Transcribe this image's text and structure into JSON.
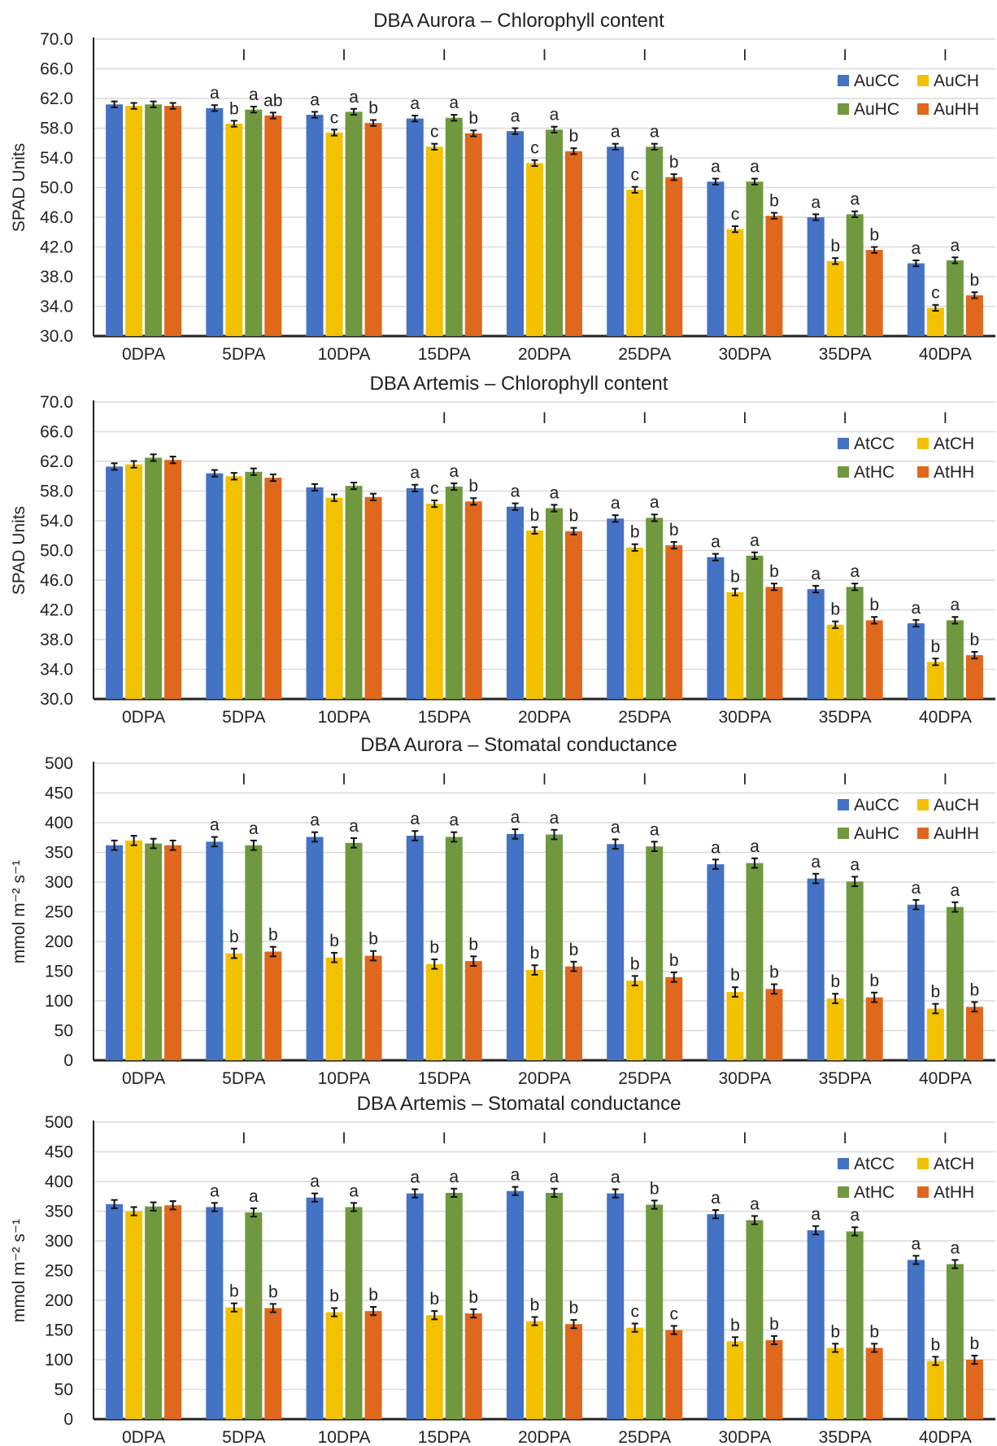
{
  "chart_data": [
    {
      "type": "bar",
      "title": "DBA Aurora – Chlorophyll content",
      "ylabel": "SPAD Units",
      "xlabel": "",
      "ylim": [
        30,
        70
      ],
      "yticks": [
        "30.0",
        "34.0",
        "38.0",
        "42.0",
        "46.0",
        "50.0",
        "54.0",
        "58.0",
        "62.0",
        "66.0",
        "70.0"
      ],
      "grid": true,
      "legend_position": "top-right",
      "categories": [
        "0DPA",
        "5DPA",
        "10DPA",
        "15DPA",
        "20DPA",
        "25DPA",
        "30DPA",
        "35DPA",
        "40DPA"
      ],
      "lsd_marker": "I",
      "lsd_shown": [
        false,
        true,
        true,
        true,
        true,
        true,
        true,
        true,
        true
      ],
      "error": 0.4,
      "series": [
        {
          "name": "AuCC",
          "color": "#4472C4",
          "values": [
            61.2,
            60.7,
            59.8,
            59.3,
            57.6,
            55.5,
            50.8,
            46.0,
            39.8
          ],
          "letters": [
            "",
            "a",
            "a",
            "a",
            "a",
            "a",
            "a",
            "a",
            "a"
          ]
        },
        {
          "name": "AuCH",
          "color": "#F2C100",
          "values": [
            61.0,
            58.6,
            57.4,
            55.5,
            53.3,
            49.7,
            44.4,
            40.1,
            33.8
          ],
          "letters": [
            "",
            "b",
            "c",
            "c",
            "c",
            "c",
            "c",
            "b",
            "c"
          ]
        },
        {
          "name": "AuHC",
          "color": "#70993F",
          "values": [
            61.2,
            60.5,
            60.2,
            59.4,
            57.8,
            55.5,
            50.8,
            46.4,
            40.2
          ],
          "letters": [
            "",
            "a",
            "a",
            "a",
            "a",
            "a",
            "a",
            "a",
            "a"
          ]
        },
        {
          "name": "AuHH",
          "color": "#E0681C",
          "values": [
            61.0,
            59.7,
            58.7,
            57.3,
            54.9,
            51.4,
            46.2,
            41.6,
            35.5
          ],
          "letters": [
            "",
            "ab",
            "b",
            "b",
            "b",
            "b",
            "b",
            "b",
            "b"
          ]
        }
      ]
    },
    {
      "type": "bar",
      "title": "DBA Artemis – Chlorophyll content",
      "ylabel": "SPAD Units",
      "xlabel": "",
      "ylim": [
        30,
        70
      ],
      "yticks": [
        "30.0",
        "34.0",
        "38.0",
        "42.0",
        "46.0",
        "50.0",
        "54.0",
        "58.0",
        "62.0",
        "66.0",
        "70.0"
      ],
      "grid": true,
      "legend_position": "top-right",
      "categories": [
        "0DPA",
        "5DPA",
        "10DPA",
        "15DPA",
        "20DPA",
        "25DPA",
        "30DPA",
        "35DPA",
        "40DPA"
      ],
      "lsd_marker": "I",
      "lsd_shown": [
        false,
        false,
        false,
        true,
        true,
        true,
        true,
        true,
        true
      ],
      "error": 0.45,
      "series": [
        {
          "name": "AtCC",
          "color": "#4472C4",
          "values": [
            61.3,
            60.4,
            58.5,
            58.4,
            55.9,
            54.3,
            49.1,
            44.8,
            40.2
          ],
          "letters": [
            "",
            "",
            "",
            "a",
            "a",
            "a",
            "a",
            "a",
            "a"
          ]
        },
        {
          "name": "AtCH",
          "color": "#F2C100",
          "values": [
            61.6,
            60.0,
            57.1,
            56.3,
            52.7,
            50.4,
            44.4,
            40.0,
            35.0
          ],
          "letters": [
            "",
            "",
            "",
            "c",
            "b",
            "b",
            "b",
            "b",
            "b"
          ]
        },
        {
          "name": "AtHC",
          "color": "#70993F",
          "values": [
            62.5,
            60.6,
            58.7,
            58.6,
            55.7,
            54.4,
            49.3,
            45.1,
            40.6
          ],
          "letters": [
            "",
            "",
            "",
            "a",
            "a",
            "a",
            "a",
            "a",
            "a"
          ]
        },
        {
          "name": "AtHH",
          "color": "#E0681C",
          "values": [
            62.2,
            59.8,
            57.2,
            56.6,
            52.6,
            50.7,
            45.1,
            40.6,
            35.9
          ],
          "letters": [
            "",
            "",
            "",
            "b",
            "b",
            "b",
            "b",
            "b",
            "b"
          ]
        }
      ]
    },
    {
      "type": "bar",
      "title": "DBA Aurora – Stomatal conductance",
      "ylabel": "mmol m⁻² s⁻¹",
      "xlabel": "",
      "ylim": [
        0,
        500
      ],
      "yticks": [
        "0",
        "50",
        "100",
        "150",
        "200",
        "250",
        "300",
        "350",
        "400",
        "450",
        "500"
      ],
      "grid": true,
      "legend_position": "top-right",
      "categories": [
        "0DPA",
        "5DPA",
        "10DPA",
        "15DPA",
        "20DPA",
        "25DPA",
        "30DPA",
        "35DPA",
        "40DPA"
      ],
      "lsd_marker": "I",
      "lsd_shown": [
        false,
        true,
        true,
        true,
        true,
        true,
        true,
        true,
        true
      ],
      "error": 8,
      "series": [
        {
          "name": "AuCC",
          "color": "#4472C4",
          "values": [
            362,
            368,
            376,
            378,
            381,
            364,
            330,
            306,
            262
          ],
          "letters": [
            "",
            "a",
            "a",
            "a",
            "a",
            "a",
            "a",
            "a",
            "a"
          ]
        },
        {
          "name": "AuCH",
          "color": "#F2C100",
          "values": [
            370,
            180,
            173,
            162,
            152,
            134,
            115,
            104,
            87
          ],
          "letters": [
            "",
            "b",
            "b",
            "b",
            "b",
            "b",
            "b",
            "b",
            "b"
          ]
        },
        {
          "name": "AuHC",
          "color": "#70993F",
          "values": [
            365,
            362,
            366,
            376,
            380,
            360,
            332,
            301,
            258
          ],
          "letters": [
            "",
            "a",
            "a",
            "a",
            "a",
            "a",
            "a",
            "a",
            "a"
          ]
        },
        {
          "name": "AuHH",
          "color": "#E0681C",
          "values": [
            362,
            183,
            176,
            167,
            158,
            140,
            120,
            106,
            90
          ],
          "letters": [
            "",
            "b",
            "b",
            "b",
            "b",
            "b",
            "b",
            "b",
            "b"
          ]
        }
      ]
    },
    {
      "type": "bar",
      "title": "DBA Artemis – Stomatal conductance",
      "ylabel": "mmol m⁻² s⁻¹",
      "xlabel": "",
      "ylim": [
        0,
        500
      ],
      "yticks": [
        "0",
        "50",
        "100",
        "150",
        "200",
        "250",
        "300",
        "350",
        "400",
        "450",
        "500"
      ],
      "grid": true,
      "legend_position": "top-right",
      "categories": [
        "0DPA",
        "5DPA",
        "10DPA",
        "15DPA",
        "20DPA",
        "25DPA",
        "30DPA",
        "35DPA",
        "40DPA"
      ],
      "lsd_marker": "I",
      "lsd_shown": [
        false,
        true,
        true,
        true,
        true,
        true,
        true,
        true,
        true
      ],
      "error": 7,
      "series": [
        {
          "name": "AtCC",
          "color": "#4472C4",
          "values": [
            362,
            357,
            373,
            380,
            384,
            380,
            345,
            318,
            268
          ],
          "letters": [
            "",
            "a",
            "a",
            "a",
            "a",
            "a",
            "a",
            "a",
            "a"
          ]
        },
        {
          "name": "AtCH",
          "color": "#F2C100",
          "values": [
            350,
            188,
            180,
            175,
            165,
            154,
            131,
            120,
            98
          ],
          "letters": [
            "",
            "b",
            "b",
            "b",
            "b",
            "c",
            "b",
            "b",
            "b"
          ]
        },
        {
          "name": "AtHC",
          "color": "#70993F",
          "values": [
            358,
            348,
            357,
            381,
            381,
            361,
            335,
            316,
            261
          ],
          "letters": [
            "",
            "a",
            "a",
            "a",
            "a",
            "b",
            "a",
            "a",
            "a"
          ]
        },
        {
          "name": "AtHH",
          "color": "#E0681C",
          "values": [
            360,
            187,
            182,
            178,
            160,
            150,
            133,
            120,
            100
          ],
          "letters": [
            "",
            "b",
            "b",
            "b",
            "b",
            "c",
            "b",
            "b",
            "b"
          ]
        }
      ]
    }
  ]
}
